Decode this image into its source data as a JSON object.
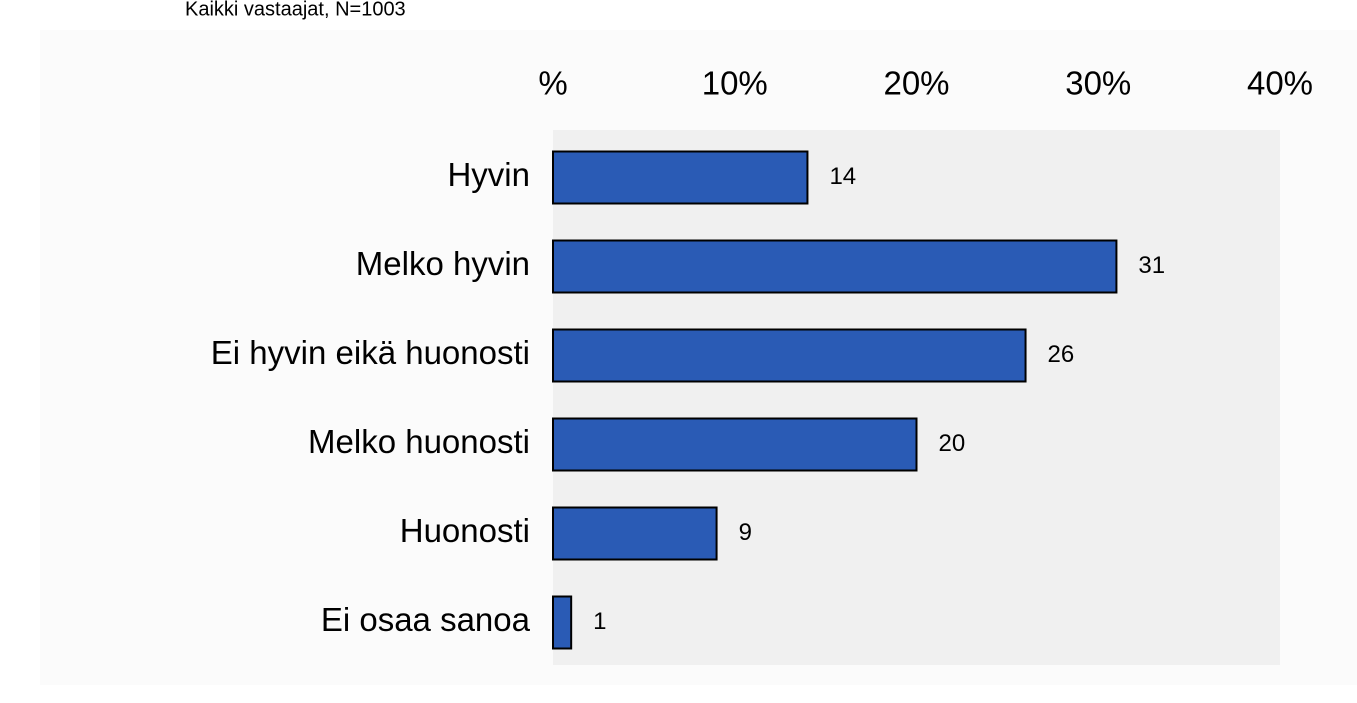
{
  "chart_data": {
    "type": "bar",
    "subtitle": "Kaikki vastaajat, N=1003",
    "categories": [
      "Hyvin",
      "Melko hyvin",
      "Ei hyvin eikä huonosti",
      "Melko huonosti",
      "Huonosti",
      "Ei osaa sanoa"
    ],
    "values": [
      14,
      31,
      26,
      20,
      9,
      1
    ],
    "color": "#2a5bb5",
    "xlim": [
      0,
      40
    ],
    "xticks": [
      {
        "value": 0,
        "label": "%"
      },
      {
        "value": 10,
        "label": "10%"
      },
      {
        "value": 20,
        "label": "20%"
      },
      {
        "value": 30,
        "label": "30%"
      },
      {
        "value": 40,
        "label": "40%"
      }
    ]
  }
}
